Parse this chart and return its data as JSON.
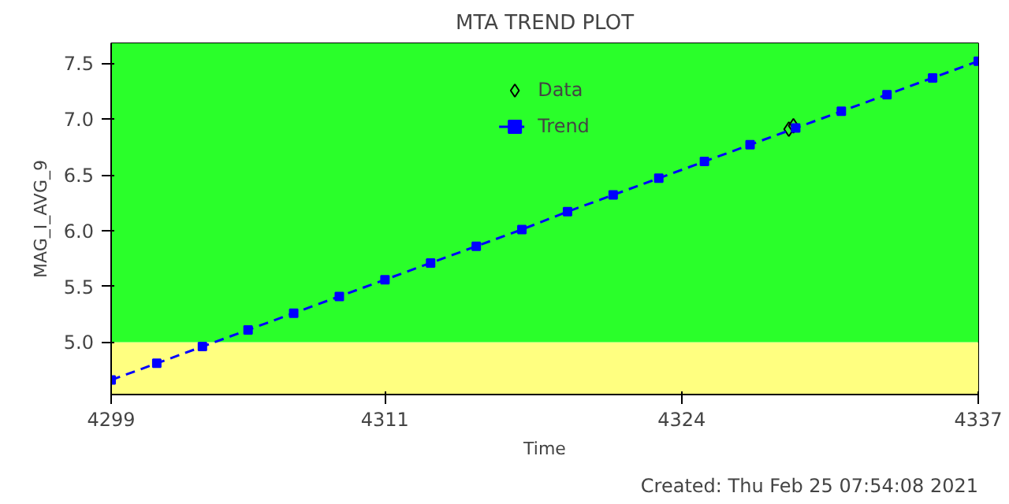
{
  "chart_data": {
    "type": "scatter",
    "title": "MTA TREND PLOT",
    "xlabel": "Time",
    "ylabel": "MAG_I_AVG_9",
    "annotations": [
      "Created: Thu Feb 25 07:54:08 2021"
    ],
    "xlim": [
      4299,
      4337
    ],
    "ylim": [
      4.53,
      7.68
    ],
    "xticks": [
      4299,
      4311,
      4324,
      4337
    ],
    "yticks": [
      {
        "value": 5.0,
        "label": "5.0"
      },
      5.5,
      {
        "value": 6.0,
        "label": "6.0"
      },
      6.5,
      {
        "value": 7.0,
        "label": "7.0"
      },
      7.5
    ],
    "grid": false,
    "legend": "top",
    "bands": [
      {
        "axis": "y",
        "from": 4.53,
        "to": 5.0,
        "color": "#ffff80"
      },
      {
        "axis": "y",
        "from": 5.0,
        "to": 7.68,
        "color": "#2aff2a"
      }
    ],
    "series": [
      {
        "name": "Data",
        "type": "scatter",
        "marker": "diamond",
        "color": "#000000",
        "x": [
          4328.7,
          4328.9
        ],
        "values": [
          6.91,
          6.94
        ]
      },
      {
        "name": "Trend",
        "type": "line",
        "marker": "square",
        "line_style": "dashed",
        "color": "#0000ff",
        "x": [
          4299,
          4301,
          4303,
          4305,
          4307,
          4309,
          4311,
          4313,
          4315,
          4317,
          4319,
          4321,
          4323,
          4325,
          4327,
          4329,
          4331,
          4333,
          4335,
          4337
        ],
        "values": [
          4.66,
          4.81,
          4.96,
          5.11,
          5.26,
          5.41,
          5.56,
          5.71,
          5.86,
          6.01,
          6.17,
          6.32,
          6.47,
          6.62,
          6.77,
          6.92,
          7.07,
          7.22,
          7.37,
          7.52
        ]
      }
    ]
  }
}
